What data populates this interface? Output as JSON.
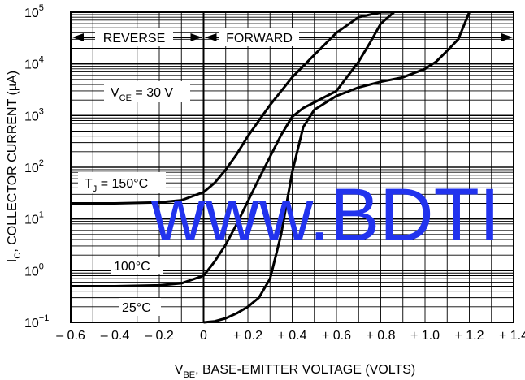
{
  "chart_data": {
    "type": "line",
    "xlabel": "V",
    "xlabel_sub": "BE",
    "xlabel_rest": ", BASE-EMITTER VOLTAGE (VOLTS)",
    "ylabel": "I",
    "ylabel_sub": "C",
    "ylabel_rest": ", COLLECTOR CURRENT (μA)",
    "xlim": [
      -0.6,
      1.4
    ],
    "ylim_log10": [
      -1,
      5
    ],
    "y_scale": "log",
    "x_ticks": [
      "– 0.6",
      "– 0.4",
      "– 0.2",
      "0",
      "+ 0.2",
      "+ 0.4",
      "+ 0.6",
      "+ 0.8",
      "+ 1.0",
      "+ 1.2",
      "+ 1.4"
    ],
    "x_tick_values": [
      -0.6,
      -0.4,
      -0.2,
      0,
      0.2,
      0.4,
      0.6,
      0.8,
      1.0,
      1.2,
      1.4
    ],
    "y_ticks": [
      {
        "base": "10",
        "exp": "5",
        "value": 5
      },
      {
        "base": "10",
        "exp": "4",
        "value": 4
      },
      {
        "base": "10",
        "exp": "3",
        "value": 3
      },
      {
        "base": "10",
        "exp": "2",
        "value": 2
      },
      {
        "base": "10",
        "exp": "1",
        "value": 1
      },
      {
        "base": "10",
        "exp": "0",
        "value": 0
      },
      {
        "base": "10",
        "exp": "−1",
        "value": -1
      }
    ],
    "grid": true,
    "annotations": {
      "reverse": "REVERSE",
      "forward": "FORWARD",
      "vce_main": "V",
      "vce_sub": "CE",
      "vce_rest": " = 30 V",
      "tj_main": "T",
      "tj_sub": "J",
      "tj_rest": " = 150°C",
      "t100": "100°C",
      "t25": "25°C"
    },
    "series": [
      {
        "label": "T_J = 150°C",
        "x": [
          -0.6,
          -0.4,
          -0.2,
          -0.1,
          0,
          0.05,
          0.1,
          0.15,
          0.2,
          0.25,
          0.3,
          0.4,
          0.5,
          0.6,
          0.7,
          0.8,
          0.86
        ],
        "y": [
          20,
          20,
          21,
          23,
          33,
          50,
          90,
          180,
          400,
          800,
          1600,
          5500,
          15000,
          40000,
          80000,
          120000,
          130000
        ]
      },
      {
        "label": "100°C",
        "x": [
          -0.6,
          -0.4,
          -0.2,
          -0.1,
          0,
          0.05,
          0.1,
          0.15,
          0.2,
          0.25,
          0.3,
          0.35,
          0.4,
          0.45,
          0.5,
          0.6,
          0.7,
          0.75,
          0.8,
          0.86
        ],
        "y": [
          0.5,
          0.5,
          0.52,
          0.57,
          0.8,
          1.5,
          3.2,
          8,
          22,
          60,
          160,
          420,
          950,
          1400,
          1800,
          3000,
          11000,
          25000,
          60000,
          130000
        ]
      },
      {
        "label": "25°C",
        "x": [
          0,
          0.05,
          0.1,
          0.15,
          0.2,
          0.25,
          0.3,
          0.35,
          0.4,
          0.45,
          0.5,
          0.6,
          0.7,
          0.8,
          0.9,
          1.0,
          1.05,
          1.1,
          1.15,
          1.2
        ],
        "y": [
          0.1,
          0.105,
          0.12,
          0.15,
          0.2,
          0.3,
          0.7,
          5,
          80,
          600,
          1300,
          2400,
          3500,
          4500,
          5500,
          8000,
          11000,
          18000,
          30000,
          120000
        ]
      }
    ]
  },
  "watermark": "www.BDTI"
}
